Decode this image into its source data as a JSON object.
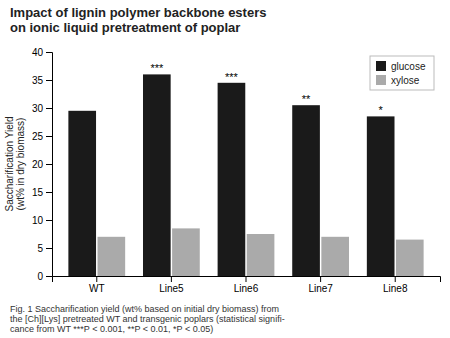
{
  "chart_data": {
    "type": "bar",
    "title": "Impact of lignin polymer backbone esters\non ionic liquid pretreatment of poplar",
    "subtitle": "Fig. 1  Saccharification yield (wt% based on initial dry biomass) from\nthe [Ch][Lys] pretreated WT and transgenic poplars (statistical signifi-\ncance from WT ***P < 0.001, **P < 0.01, *P < 0.05)",
    "categories": [
      "WT",
      "Line5",
      "Line6",
      "Line7",
      "Line8"
    ],
    "series": [
      {
        "name": "glucose",
        "color": "#1a1a1a",
        "values": [
          29.5,
          36.0,
          34.5,
          30.5,
          28.5
        ]
      },
      {
        "name": "xylose",
        "color": "#aaaaaa",
        "values": [
          7.0,
          8.5,
          7.5,
          7.0,
          6.5
        ]
      }
    ],
    "ylabel": "Saccharification Yield\n(wt% in dry biomass)",
    "ylim": [
      0,
      40
    ],
    "yticks": [
      0,
      5,
      10,
      15,
      20,
      25,
      30,
      35,
      40
    ],
    "grid": false,
    "legend": "upper right",
    "annotations": [
      {
        "category": "Line5",
        "series": "glucose",
        "text": "***"
      },
      {
        "category": "Line6",
        "series": "glucose",
        "text": "***"
      },
      {
        "category": "Line7",
        "series": "glucose",
        "text": "**"
      },
      {
        "category": "Line8",
        "series": "glucose",
        "text": "*"
      }
    ]
  }
}
